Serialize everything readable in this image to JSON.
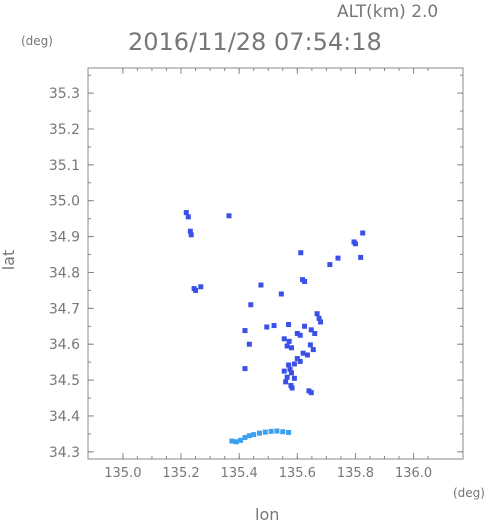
{
  "header": {
    "altitude_label": "ALT(km) 2.0",
    "timestamp": "2016/11/28 07:54:18"
  },
  "colors": {
    "axis": "#888888",
    "text": "#777777",
    "echo_main": "#3a50e8",
    "echo_light": "#3aa0f0"
  },
  "chart_data": {
    "type": "scatter",
    "xlabel": "lon",
    "ylabel": "lat",
    "x_unit": "(deg)",
    "y_unit": "(deg)",
    "xlim": [
      134.88,
      136.17
    ],
    "ylim": [
      34.28,
      35.37
    ],
    "x_ticks": [
      135.0,
      135.2,
      135.4,
      135.6,
      135.8,
      136.0
    ],
    "x_tick_labels": [
      "135.0",
      "135.2",
      "135.4",
      "135.6",
      "135.8",
      "136.0"
    ],
    "y_ticks": [
      34.3,
      34.4,
      34.5,
      34.6,
      34.7,
      34.8,
      34.9,
      35.0,
      35.1,
      35.2,
      35.3
    ],
    "y_tick_labels": [
      "34.3",
      "34.4",
      "34.5",
      "34.6",
      "34.7",
      "34.8",
      "34.9",
      "35.0",
      "35.1",
      "35.2",
      "35.3"
    ],
    "grid": false,
    "series": [
      {
        "color": "#3a50e8",
        "points": [
          [
            135.218,
            34.967
          ],
          [
            135.225,
            34.955
          ],
          [
            135.232,
            34.915
          ],
          [
            135.235,
            34.905
          ],
          [
            135.365,
            34.958
          ],
          [
            135.245,
            34.755
          ],
          [
            135.25,
            34.75
          ],
          [
            135.268,
            34.76
          ],
          [
            135.795,
            34.885
          ],
          [
            135.8,
            34.88
          ],
          [
            135.825,
            34.91
          ],
          [
            135.612,
            34.855
          ],
          [
            135.618,
            34.78
          ],
          [
            135.625,
            34.775
          ],
          [
            135.74,
            34.84
          ],
          [
            135.712,
            34.822
          ],
          [
            135.818,
            34.842
          ],
          [
            135.475,
            34.765
          ],
          [
            135.545,
            34.74
          ],
          [
            135.44,
            34.71
          ],
          [
            135.668,
            34.685
          ],
          [
            135.675,
            34.672
          ],
          [
            135.68,
            34.662
          ],
          [
            135.42,
            34.638
          ],
          [
            135.495,
            34.648
          ],
          [
            135.52,
            34.652
          ],
          [
            135.57,
            34.655
          ],
          [
            135.625,
            34.65
          ],
          [
            135.648,
            34.64
          ],
          [
            135.66,
            34.63
          ],
          [
            135.6,
            34.63
          ],
          [
            135.61,
            34.625
          ],
          [
            135.555,
            34.615
          ],
          [
            135.572,
            34.608
          ],
          [
            135.435,
            34.6
          ],
          [
            135.645,
            34.598
          ],
          [
            135.655,
            34.585
          ],
          [
            135.565,
            34.595
          ],
          [
            135.58,
            34.59
          ],
          [
            135.62,
            34.575
          ],
          [
            135.635,
            34.57
          ],
          [
            135.6,
            34.56
          ],
          [
            135.61,
            34.552
          ],
          [
            135.59,
            34.545
          ],
          [
            135.57,
            34.542
          ],
          [
            135.575,
            34.53
          ],
          [
            135.555,
            34.525
          ],
          [
            135.58,
            34.52
          ],
          [
            135.565,
            34.508
          ],
          [
            135.59,
            34.505
          ],
          [
            135.56,
            34.495
          ],
          [
            135.578,
            34.485
          ],
          [
            135.42,
            34.532
          ],
          [
            135.64,
            34.47
          ],
          [
            135.648,
            34.465
          ],
          [
            135.582,
            34.478
          ]
        ]
      },
      {
        "color": "#3aa0f0",
        "points": [
          [
            135.375,
            34.33
          ],
          [
            135.39,
            34.328
          ],
          [
            135.405,
            34.332
          ],
          [
            135.42,
            34.34
          ],
          [
            135.435,
            34.345
          ],
          [
            135.45,
            34.348
          ],
          [
            135.47,
            34.352
          ],
          [
            135.49,
            34.355
          ],
          [
            135.51,
            34.357
          ],
          [
            135.53,
            34.358
          ],
          [
            135.55,
            34.356
          ],
          [
            135.57,
            34.354
          ]
        ]
      }
    ]
  }
}
